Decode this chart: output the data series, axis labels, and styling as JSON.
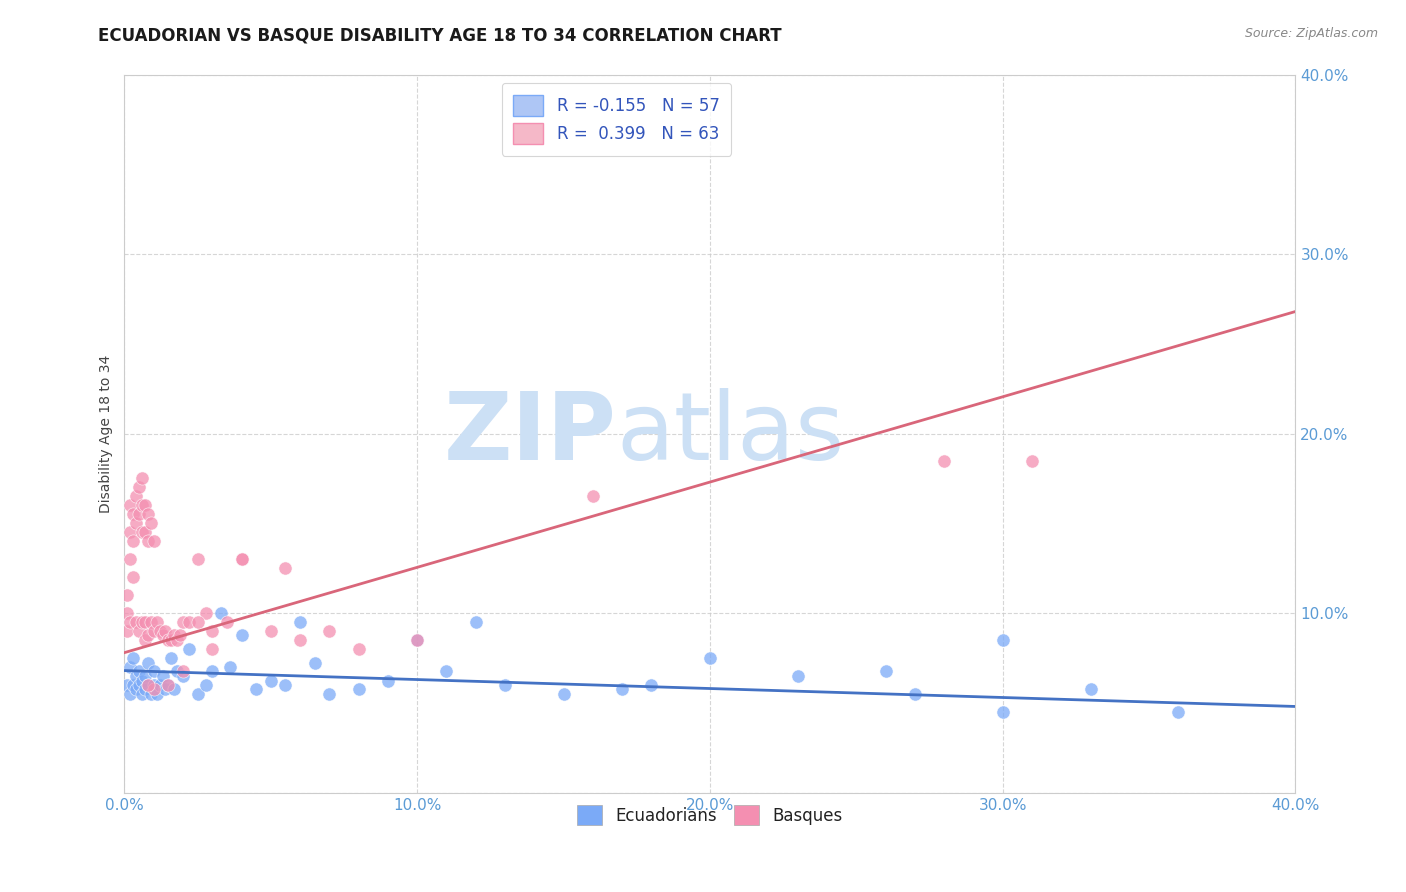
{
  "title": "ECUADORIAN VS BASQUE DISABILITY AGE 18 TO 34 CORRELATION CHART",
  "source_text": "Source: ZipAtlas.com",
  "ylabel": "Disability Age 18 to 34",
  "xlim": [
    0.0,
    0.4
  ],
  "ylim": [
    0.0,
    0.4
  ],
  "legend_entries": [
    {
      "label": "R = -0.155   N = 57",
      "facecolor": "#aec6f5",
      "edgecolor": "#7baaf7"
    },
    {
      "label": "R =  0.399   N = 63",
      "facecolor": "#f5b8c8",
      "edgecolor": "#f48fb1"
    }
  ],
  "blue_scatter_color": "#7baaf7",
  "pink_scatter_color": "#f48fb1",
  "blue_line_color": "#4472c4",
  "pink_line_color": "#d9667a",
  "watermark_color": "#cce0f5",
  "grid_color": "#cccccc",
  "background_color": "#ffffff",
  "ecuadorians_label": "Ecuadorians",
  "basques_label": "Basques",
  "blue_line_start_y": 0.068,
  "blue_line_end_y": 0.048,
  "pink_line_start_y": 0.078,
  "pink_line_end_y": 0.268,
  "blue_points_x": [
    0.001,
    0.002,
    0.002,
    0.003,
    0.003,
    0.004,
    0.004,
    0.005,
    0.005,
    0.006,
    0.006,
    0.007,
    0.007,
    0.008,
    0.008,
    0.009,
    0.01,
    0.01,
    0.011,
    0.012,
    0.013,
    0.014,
    0.015,
    0.016,
    0.017,
    0.018,
    0.02,
    0.022,
    0.025,
    0.028,
    0.03,
    0.033,
    0.036,
    0.04,
    0.045,
    0.05,
    0.055,
    0.06,
    0.065,
    0.07,
    0.08,
    0.09,
    0.1,
    0.11,
    0.13,
    0.15,
    0.17,
    0.2,
    0.23,
    0.26,
    0.3,
    0.33,
    0.36,
    0.3,
    0.18,
    0.12,
    0.27
  ],
  "blue_points_y": [
    0.06,
    0.055,
    0.07,
    0.06,
    0.075,
    0.058,
    0.065,
    0.06,
    0.068,
    0.062,
    0.055,
    0.058,
    0.065,
    0.06,
    0.072,
    0.055,
    0.068,
    0.06,
    0.055,
    0.06,
    0.065,
    0.058,
    0.06,
    0.075,
    0.058,
    0.068,
    0.065,
    0.08,
    0.055,
    0.06,
    0.068,
    0.1,
    0.07,
    0.088,
    0.058,
    0.062,
    0.06,
    0.095,
    0.072,
    0.055,
    0.058,
    0.062,
    0.085,
    0.068,
    0.06,
    0.055,
    0.058,
    0.075,
    0.065,
    0.068,
    0.085,
    0.058,
    0.045,
    0.045,
    0.06,
    0.095,
    0.055
  ],
  "pink_points_x": [
    0.001,
    0.001,
    0.001,
    0.002,
    0.002,
    0.002,
    0.002,
    0.003,
    0.003,
    0.003,
    0.004,
    0.004,
    0.004,
    0.005,
    0.005,
    0.005,
    0.006,
    0.006,
    0.006,
    0.006,
    0.007,
    0.007,
    0.007,
    0.007,
    0.008,
    0.008,
    0.008,
    0.009,
    0.009,
    0.01,
    0.01,
    0.011,
    0.012,
    0.013,
    0.014,
    0.015,
    0.016,
    0.017,
    0.018,
    0.019,
    0.02,
    0.022,
    0.025,
    0.028,
    0.03,
    0.035,
    0.04,
    0.05,
    0.06,
    0.07,
    0.08,
    0.1,
    0.04,
    0.055,
    0.025,
    0.03,
    0.02,
    0.015,
    0.01,
    0.008,
    0.28,
    0.31,
    0.16
  ],
  "pink_points_y": [
    0.09,
    0.1,
    0.11,
    0.16,
    0.145,
    0.13,
    0.095,
    0.155,
    0.14,
    0.12,
    0.165,
    0.15,
    0.095,
    0.17,
    0.155,
    0.09,
    0.175,
    0.16,
    0.145,
    0.095,
    0.16,
    0.145,
    0.095,
    0.085,
    0.155,
    0.14,
    0.088,
    0.15,
    0.095,
    0.09,
    0.14,
    0.095,
    0.09,
    0.088,
    0.09,
    0.085,
    0.085,
    0.088,
    0.085,
    0.088,
    0.095,
    0.095,
    0.13,
    0.1,
    0.09,
    0.095,
    0.13,
    0.09,
    0.085,
    0.09,
    0.08,
    0.085,
    0.13,
    0.125,
    0.095,
    0.08,
    0.068,
    0.06,
    0.058,
    0.06,
    0.185,
    0.185,
    0.165
  ]
}
